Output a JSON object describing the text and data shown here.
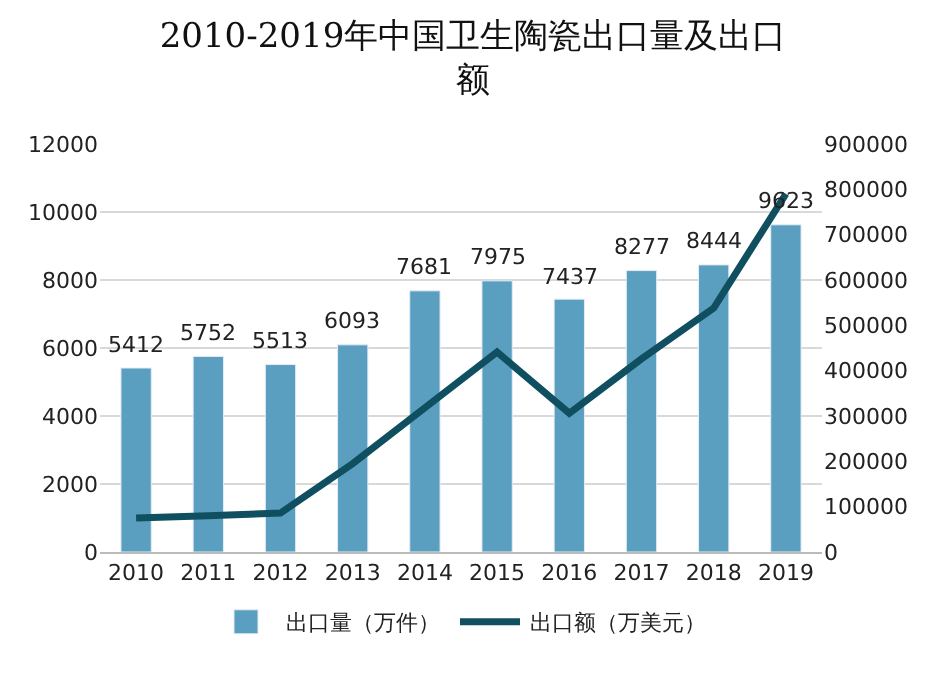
{
  "chart_data": {
    "type": "bar",
    "title": "2010-2019年中国卫生陶瓷出口量及出口额",
    "categories": [
      "2010",
      "2011",
      "2012",
      "2013",
      "2014",
      "2015",
      "2016",
      "2017",
      "2018",
      "2019"
    ],
    "series": [
      {
        "name": "出口量（万件）",
        "color": "#5a9fc0",
        "values": [
          5412,
          5752,
          5513,
          6093,
          7681,
          7975,
          7437,
          8277,
          8444,
          9623
        ],
        "value_labels": [
          "5412",
          "5752",
          "5513",
          "6093",
          "7681",
          "7975",
          "7437",
          "8277",
          "8444",
          "9623"
        ]
      },
      {
        "name": "出口额（万美元）",
        "type": "line",
        "axis": "y2",
        "color": "#0f4f60",
        "values": [
          75000,
          80000,
          86000,
          195000,
          318000,
          441000,
          306000,
          426000,
          538000,
          790000
        ]
      }
    ],
    "ylim": [
      0,
      12000
    ],
    "yticks": [
      0,
      2000,
      4000,
      6000,
      8000,
      10000,
      12000
    ],
    "y2lim": [
      0,
      900000
    ],
    "y2ticks": [
      0,
      100000,
      200000,
      300000,
      400000,
      500000,
      600000,
      700000,
      800000,
      900000
    ],
    "grid": "y",
    "legend": "bottom",
    "marker": "none",
    "line_style": "solid"
  }
}
